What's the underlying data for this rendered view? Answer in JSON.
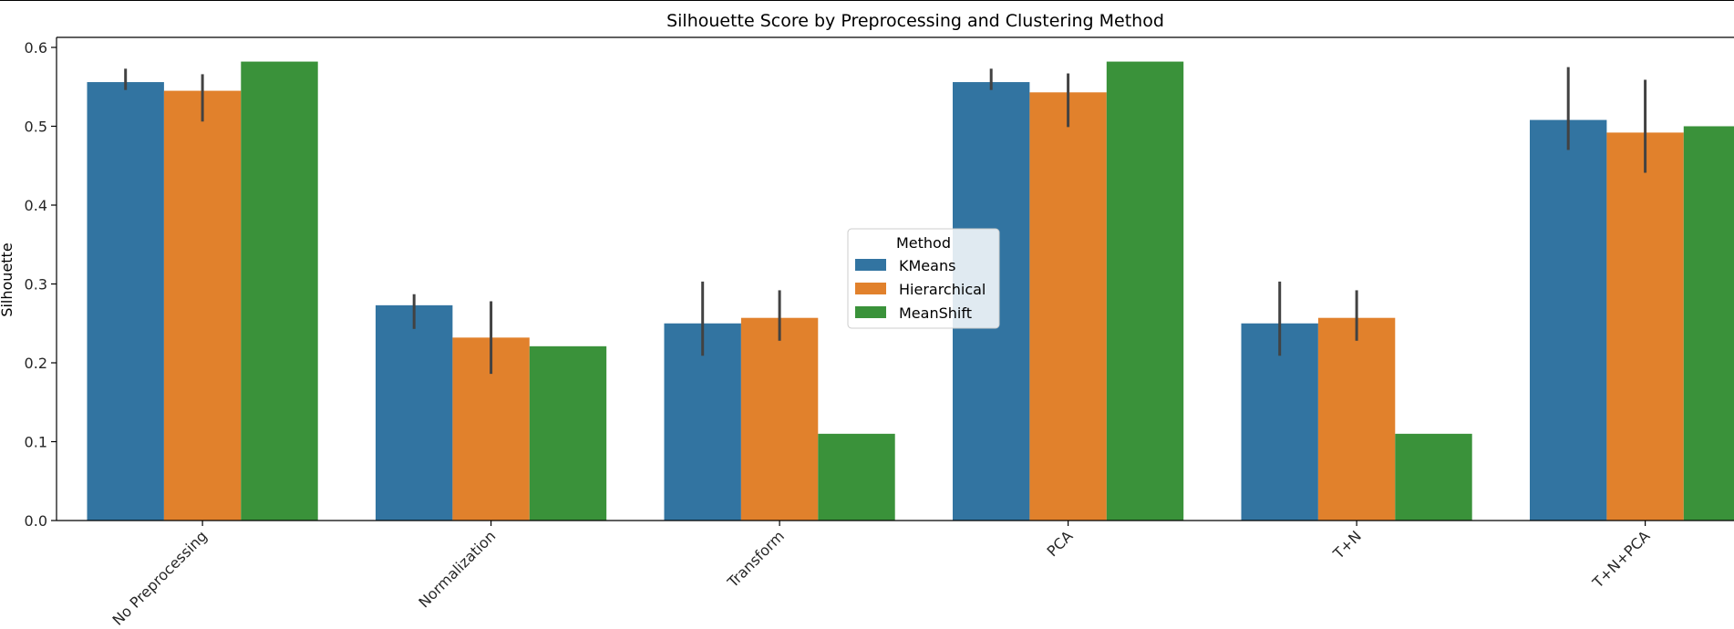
{
  "chart_data": {
    "type": "bar",
    "title": "Silhouette Score by Preprocessing and Clustering Method",
    "xlabel": "",
    "ylabel": "Silhouette",
    "ylim": [
      0,
      0.6
    ],
    "yticks": [
      0.0,
      0.1,
      0.2,
      0.3,
      0.4,
      0.5,
      0.6
    ],
    "ytick_labels": [
      "0.0",
      "0.1",
      "0.2",
      "0.3",
      "0.4",
      "0.5",
      "0.6"
    ],
    "grid": false,
    "legend": {
      "title": "Method",
      "placement": "center"
    },
    "categories": [
      "No Preprocessing",
      "Normalization",
      "Transform",
      "PCA",
      "T+N",
      "T+N+PCA"
    ],
    "series": [
      {
        "name": "KMeans",
        "color": "#3274a1",
        "values": [
          0.556,
          0.273,
          0.25,
          0.556,
          0.25,
          0.508
        ],
        "error_low": [
          0.546,
          0.243,
          0.209,
          0.546,
          0.209,
          0.47
        ],
        "error_high": [
          0.573,
          0.287,
          0.303,
          0.573,
          0.303,
          0.575
        ]
      },
      {
        "name": "Hierarchical",
        "color": "#e1812c",
        "values": [
          0.545,
          0.232,
          0.257,
          0.543,
          0.257,
          0.492
        ],
        "error_low": [
          0.506,
          0.186,
          0.228,
          0.499,
          0.228,
          0.441
        ],
        "error_high": [
          0.566,
          0.278,
          0.292,
          0.567,
          0.292,
          0.559
        ]
      },
      {
        "name": "MeanShift",
        "color": "#3a923a",
        "values": [
          0.582,
          0.221,
          0.11,
          0.582,
          0.11,
          0.5
        ]
      }
    ],
    "error_bar_color": "#424242"
  }
}
